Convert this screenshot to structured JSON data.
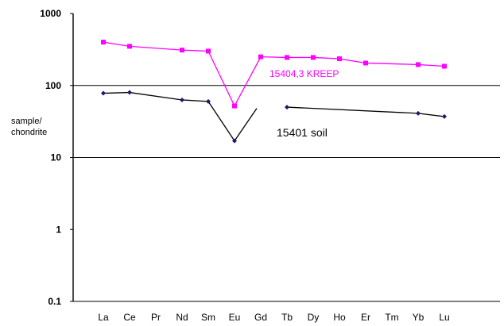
{
  "chart_data": {
    "type": "line",
    "yscale": "log",
    "ylim": [
      0.1,
      1000
    ],
    "yticks": [
      "1000",
      "100",
      "10",
      "1",
      "0.1"
    ],
    "ylabel": [
      "sample/",
      "chondrite"
    ],
    "categories": [
      "La",
      "Ce",
      "Pr",
      "Nd",
      "Sm",
      "Eu",
      "Gd",
      "Tb",
      "Dy",
      "Ho",
      "Er",
      "Tm",
      "Yb",
      "Lu"
    ],
    "grid": "horizontal at 10 and 100",
    "series": [
      {
        "name": "15404,3 KREEP",
        "color": "#ff00ff",
        "marker": "square",
        "values": [
          400,
          350,
          null,
          310,
          300,
          52,
          250,
          245,
          245,
          235,
          205,
          null,
          195,
          185
        ]
      },
      {
        "name": "15401 soil",
        "color": "#000000",
        "marker": "diamond",
        "values": [
          78,
          80,
          null,
          63,
          60,
          17,
          null,
          50,
          null,
          null,
          null,
          null,
          41,
          37
        ]
      }
    ]
  }
}
